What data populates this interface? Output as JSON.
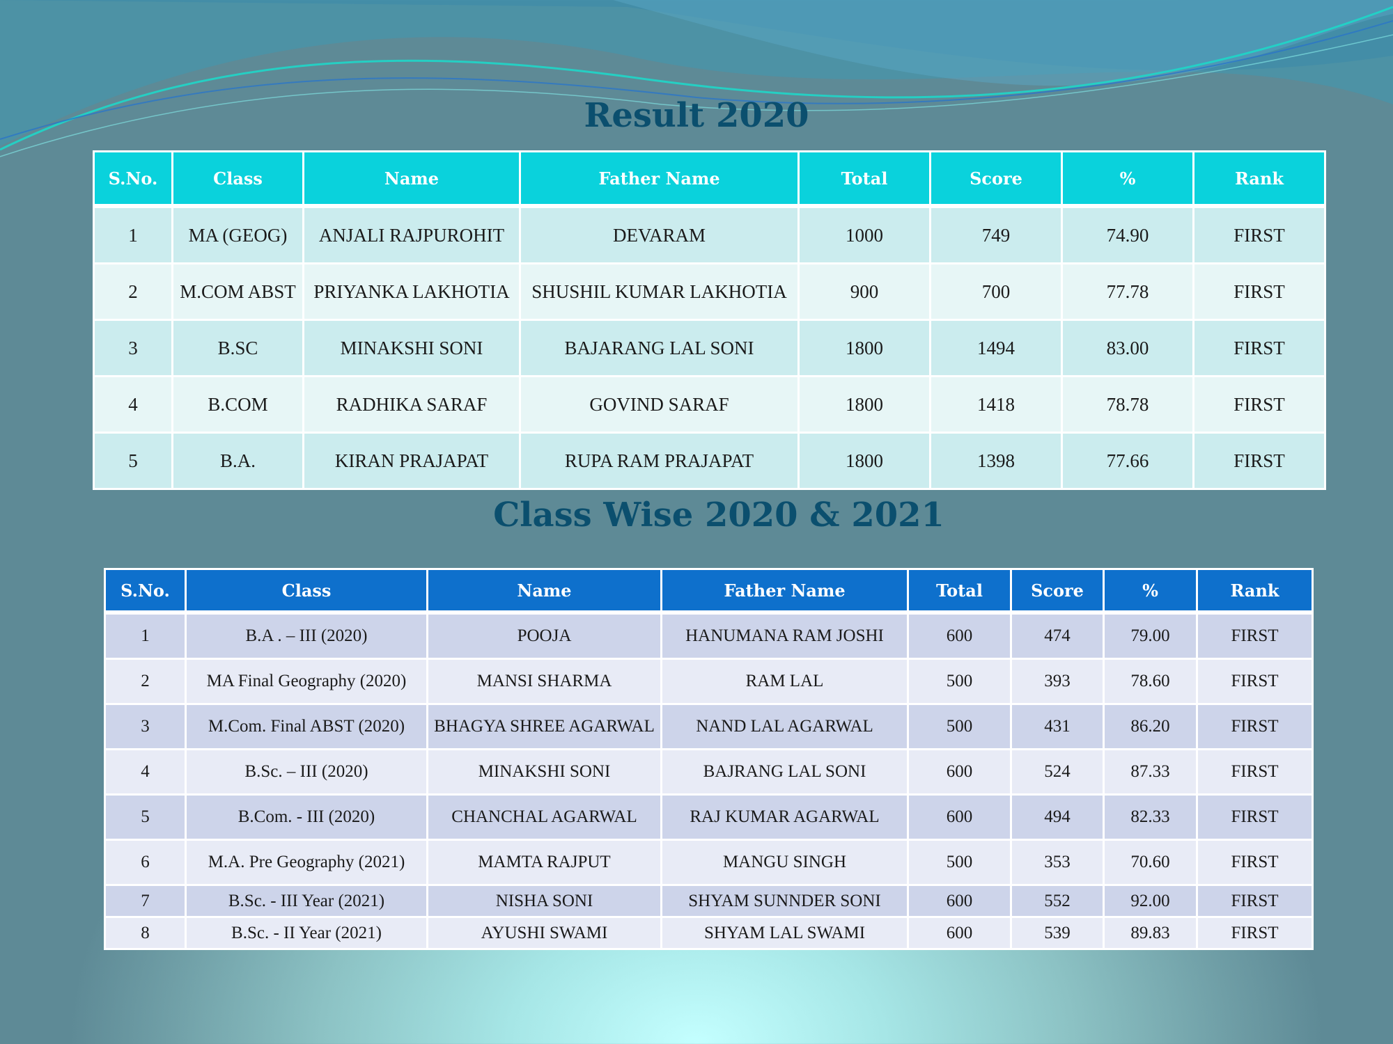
{
  "colors": {
    "title": "#0b4f6e",
    "table1_header": "#0ad2dc",
    "table1_row_odd": "#cbecee",
    "table1_row_even": "#e7f6f6",
    "table2_header": "#0e70cc",
    "table2_row_odd": "#cdd4ea",
    "table2_row_even": "#e8ebf6"
  },
  "result2020": {
    "title": "Result 2020",
    "headers": [
      "S.No.",
      "Class",
      "Name",
      "Father Name",
      "Total",
      "Score",
      "%",
      "Rank"
    ],
    "rows": [
      [
        "1",
        "MA (GEOG)",
        "ANJALI RAJPUROHIT",
        "DEVARAM",
        "1000",
        "749",
        "74.90",
        "FIRST"
      ],
      [
        "2",
        "M.COM ABST",
        "PRIYANKA LAKHOTIA",
        "SHUSHIL KUMAR LAKHOTIA",
        "900",
        "700",
        "77.78",
        "FIRST"
      ],
      [
        "3",
        "B.SC",
        "MINAKSHI SONI",
        "BAJARANG LAL SONI",
        "1800",
        "1494",
        "83.00",
        "FIRST"
      ],
      [
        "4",
        "B.COM",
        "RADHIKA SARAF",
        "GOVIND SARAF",
        "1800",
        "1418",
        "78.78",
        "FIRST"
      ],
      [
        "5",
        "B.A.",
        "KIRAN PRAJAPAT",
        "RUPA RAM PRAJAPAT",
        "1800",
        "1398",
        "77.66",
        "FIRST"
      ]
    ]
  },
  "classwise": {
    "title": "Class Wise 2020 & 2021",
    "headers": [
      "S.No.",
      "Class",
      "Name",
      "Father Name",
      "Total",
      "Score",
      "%",
      "Rank"
    ],
    "rows": [
      [
        "1",
        "B.A . – III (2020)",
        "POOJA",
        "HANUMANA RAM JOSHI",
        "600",
        "474",
        "79.00",
        "FIRST"
      ],
      [
        "2",
        "MA  Final Geography (2020)",
        "MANSI SHARMA",
        "RAM LAL",
        "500",
        "393",
        "78.60",
        "FIRST"
      ],
      [
        "3",
        "M.Com. Final ABST (2020)",
        "BHAGYA SHREE AGARWAL",
        "NAND LAL AGARWAL",
        "500",
        "431",
        "86.20",
        "FIRST"
      ],
      [
        "4",
        "B.Sc. – III (2020)",
        "MINAKSHI SONI",
        "BAJRANG LAL SONI",
        "600",
        "524",
        "87.33",
        "FIRST"
      ],
      [
        "5",
        "B.Com.  - III (2020)",
        "CHANCHAL AGARWAL",
        "RAJ KUMAR AGARWAL",
        "600",
        "494",
        "82.33",
        "FIRST"
      ],
      [
        "6",
        "M.A. Pre Geography (2021)",
        "MAMTA RAJPUT",
        "MANGU SINGH",
        "500",
        "353",
        "70.60",
        "FIRST"
      ],
      [
        "7",
        "B.Sc.  - III Year (2021)",
        "NISHA SONI",
        "SHYAM SUNNDER SONI",
        "600",
        "552",
        "92.00",
        "FIRST"
      ],
      [
        "8",
        "B.Sc.  - II Year (2021)",
        "AYUSHI SWAMI",
        "SHYAM LAL SWAMI",
        "600",
        "539",
        "89.83",
        "FIRST"
      ]
    ]
  }
}
